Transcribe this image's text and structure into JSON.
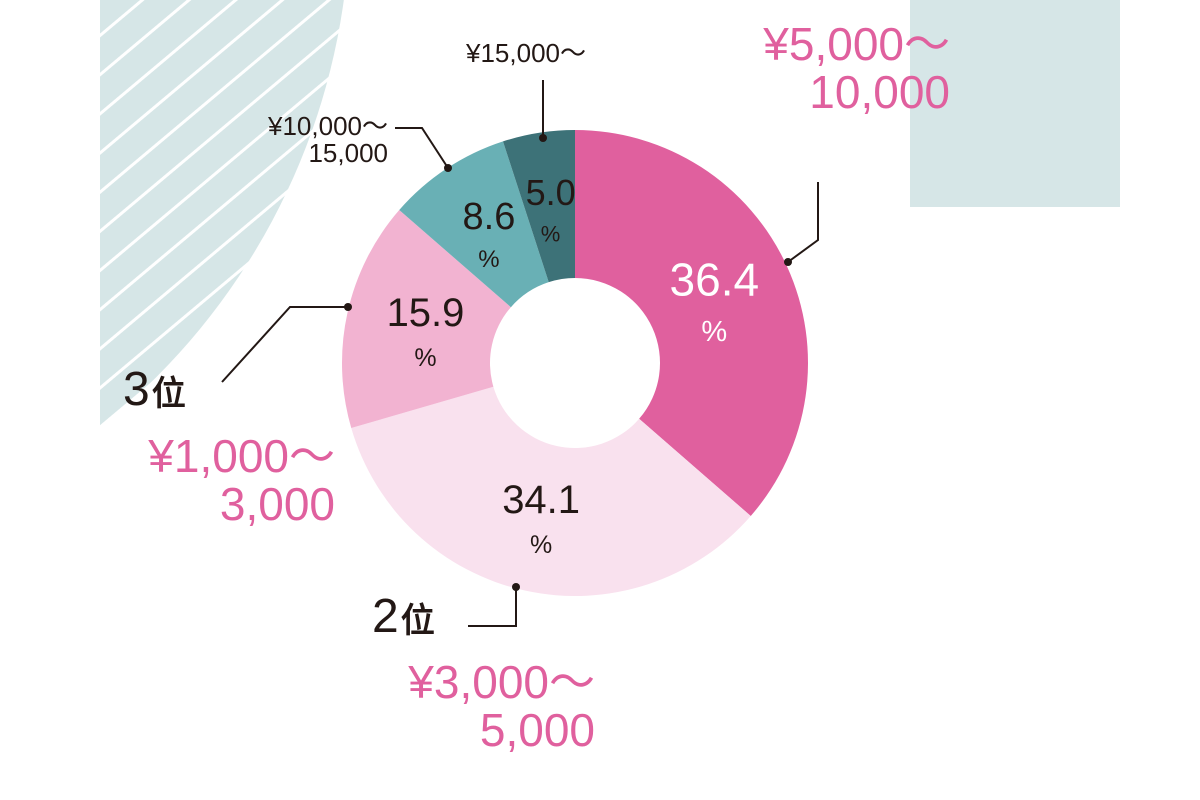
{
  "chart_data": {
    "type": "pie",
    "donut": true,
    "title": "",
    "unit": "%",
    "slices": [
      {
        "label": "¥5,000〜10,000",
        "value": 36.4,
        "value_text": "36.4",
        "color": "#e0609e",
        "text_color": "#ffffff",
        "rank": ""
      },
      {
        "label": "¥3,000〜5,000",
        "value": 34.1,
        "value_text": "34.1",
        "color": "#f9e1ee",
        "text_color": "#231815",
        "rank": "2"
      },
      {
        "label": "¥1,000〜3,000",
        "value": 15.9,
        "value_text": "15.9",
        "color": "#f2b3d1",
        "text_color": "#231815",
        "rank": "3"
      },
      {
        "label": "¥10,000〜15,000",
        "value": 8.6,
        "value_text": "8.6",
        "color": "#69b0b5",
        "text_color": "#231815",
        "rank": ""
      },
      {
        "label": "¥15,000〜",
        "value": 5.0,
        "value_text": "5.0",
        "color": "#3d7278",
        "text_color": "#231815",
        "rank": ""
      }
    ]
  },
  "callouts": {
    "top_right": {
      "line1": "¥5,000〜",
      "line2": "10,000"
    },
    "top_small": {
      "text": "¥15,000〜"
    },
    "left_small": {
      "line1": "¥10,000〜",
      "line2": "15,000"
    },
    "rank3": {
      "number": "3",
      "unit": "位",
      "line1": "¥1,000〜",
      "line2": "3,000"
    },
    "rank2": {
      "number": "2",
      "unit": "位",
      "line1": "¥3,000〜",
      "line2": "5,000"
    }
  },
  "colors": {
    "decor_teal": "#d6e6e7",
    "leader_line": "#231815"
  }
}
